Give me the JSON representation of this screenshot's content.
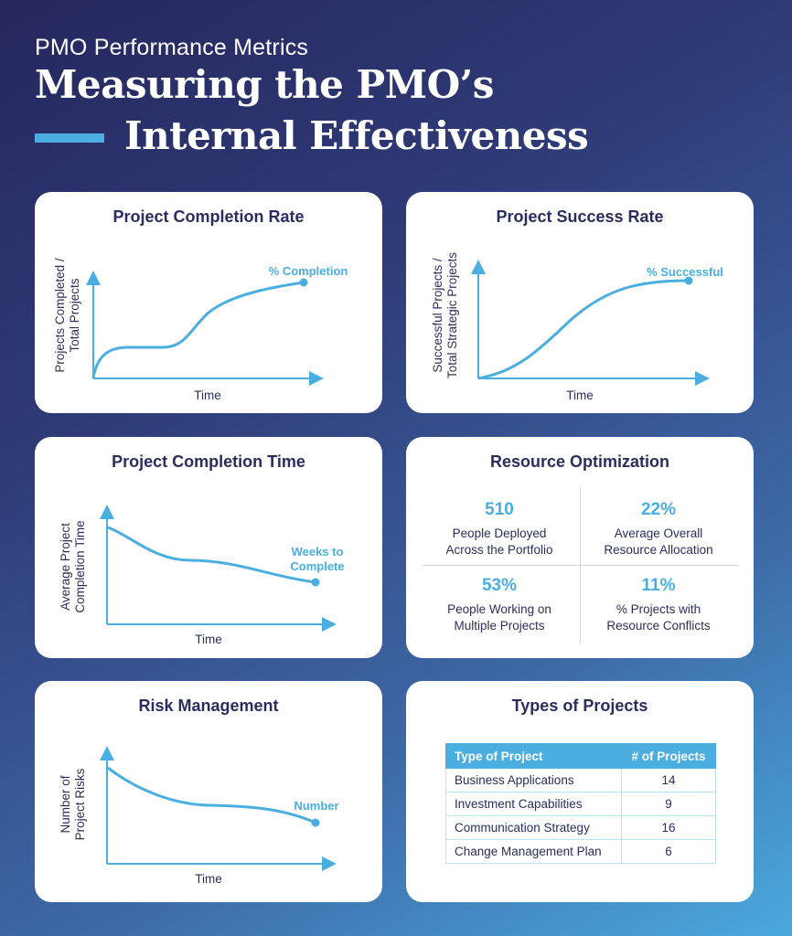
{
  "header": {
    "kicker": "PMO Performance Metrics",
    "title_line1": "Measuring the PMO’s",
    "title_line2": "Internal Effectiveness",
    "accent_color": "#4aaee0"
  },
  "cards": {
    "completion_rate": {
      "title": "Project Completion Rate",
      "y_label": [
        "Projects Completed /",
        "Total Projects"
      ],
      "x_label": "Time",
      "annotation": "% Completion"
    },
    "success_rate": {
      "title": "Project Success Rate",
      "y_label": [
        "Successful Projects /",
        "Total Strategic Projects"
      ],
      "x_label": "Time",
      "annotation": "% Successful"
    },
    "completion_time": {
      "title": "Project Completion Time",
      "y_label": [
        "Average Project",
        "Completion Time"
      ],
      "x_label": "Time",
      "annotation": [
        "Weeks to",
        "Complete"
      ]
    },
    "resource": {
      "title": "Resource Optimization",
      "stats": [
        {
          "value": "510",
          "label": [
            "People Deployed",
            "Across the Portfolio"
          ]
        },
        {
          "value": "22%",
          "label": [
            "Average Overall",
            "Resource Allocation"
          ]
        },
        {
          "value": "53%",
          "label": [
            "People Working on",
            "Multiple Projects"
          ]
        },
        {
          "value": "11%",
          "label": [
            "% Projects with",
            "Resource Conflicts"
          ]
        }
      ]
    },
    "risk": {
      "title": "Risk Management",
      "y_label": [
        "Number of",
        "Project Risks"
      ],
      "x_label": "Time",
      "annotation": "Number"
    },
    "types": {
      "title": "Types of Projects",
      "columns": [
        "Type of Project",
        "# of Projects"
      ],
      "rows": [
        [
          "Business Applications",
          "14"
        ],
        [
          "Investment Capabilities",
          "9"
        ],
        [
          "Communication Strategy",
          "16"
        ],
        [
          "Change Management Plan",
          "6"
        ]
      ]
    }
  }
}
